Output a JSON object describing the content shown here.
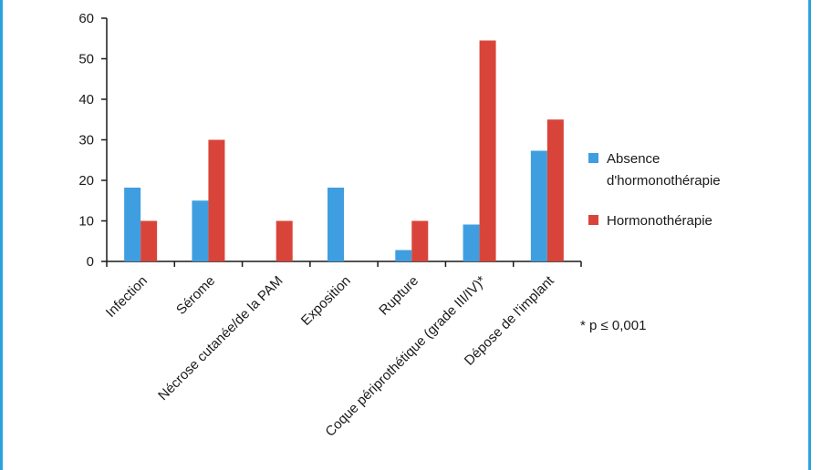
{
  "colors": {
    "frame": "#29a3dd",
    "axis": "#1a1a1a"
  },
  "chart_data": {
    "type": "bar",
    "title": "",
    "xlabel": "",
    "ylabel": "",
    "ylim": [
      0,
      60
    ],
    "yticks": [
      0,
      10,
      20,
      30,
      40,
      50,
      60
    ],
    "grid": false,
    "legend_position": "right",
    "categories": [
      "Infection",
      "Sérome",
      "Nécrose cutanée/de la PAM",
      "Exposition",
      "Rupture",
      "Coque périprothétique (grade III/IV)*",
      "Dépose de l'implant"
    ],
    "series": [
      {
        "name_lines": [
          "Absence",
          "d'hormonothérapie"
        ],
        "color": "#3f9ee0",
        "values": [
          18.2,
          15,
          0,
          18.2,
          2.8,
          9.1,
          27.3
        ]
      },
      {
        "name_lines": [
          "Hormonothérapie"
        ],
        "color": "#d9443a",
        "values": [
          10,
          30,
          10,
          0,
          10,
          54.5,
          35
        ]
      }
    ],
    "annotation": "* p ≤ 0,001"
  }
}
